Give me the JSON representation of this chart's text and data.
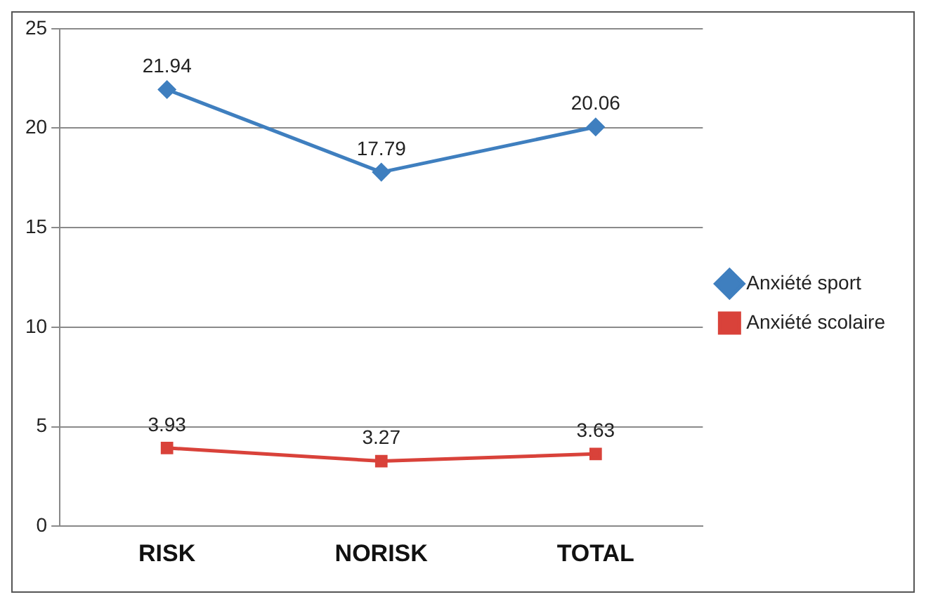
{
  "chart_data": {
    "type": "line",
    "categories": [
      "RISK",
      "NORISK",
      "TOTAL"
    ],
    "series": [
      {
        "name": "Anxiété sport",
        "color": "#3f7fbf",
        "marker": "diamond",
        "values": [
          21.94,
          17.79,
          20.06
        ]
      },
      {
        "name": "Anxiété scolaire",
        "color": "#d9423a",
        "marker": "square",
        "values": [
          3.93,
          3.27,
          3.63
        ]
      }
    ],
    "ylim": [
      0,
      25
    ],
    "yticks": [
      0,
      5,
      10,
      15,
      20,
      25
    ],
    "grid": "y",
    "legend": "right",
    "data_labels": true,
    "line_style": "solid"
  }
}
